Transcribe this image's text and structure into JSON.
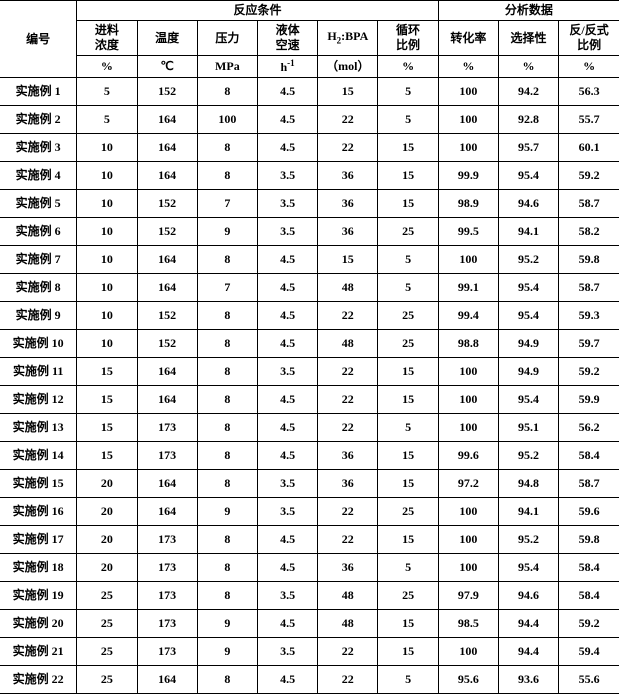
{
  "header": {
    "row_label": "编号",
    "group1": "反应条件",
    "group2": "分析数据",
    "c1": "进料<br>浓度",
    "c2": "温度",
    "c3": "压力",
    "c4": "液体<br>空速",
    "c5": "H<sub>2</sub>:BPA",
    "c6": "循环<br>比例",
    "c7": "转化率",
    "c8": "选择性",
    "c9": "反/反式<br>比例",
    "u1": "%",
    "u2": "℃",
    "u3": "MPa",
    "u4": "h<sup>-1</sup>",
    "u5": "（mol）",
    "u6": "%",
    "u7": "%",
    "u8": "%",
    "u9": "%"
  },
  "rows": [
    {
      "label": "实施例 1",
      "v": [
        "5",
        "152",
        "8",
        "4.5",
        "15",
        "5",
        "100",
        "94.2",
        "56.3"
      ]
    },
    {
      "label": "实施例 2",
      "v": [
        "5",
        "164",
        "100",
        "4.5",
        "22",
        "5",
        "100",
        "92.8",
        "55.7"
      ]
    },
    {
      "label": "实施例 3",
      "v": [
        "10",
        "164",
        "8",
        "4.5",
        "22",
        "15",
        "100",
        "95.7",
        "60.1"
      ]
    },
    {
      "label": "实施例 4",
      "v": [
        "10",
        "164",
        "8",
        "3.5",
        "36",
        "15",
        "99.9",
        "95.4",
        "59.2"
      ]
    },
    {
      "label": "实施例 5",
      "v": [
        "10",
        "152",
        "7",
        "3.5",
        "36",
        "15",
        "98.9",
        "94.6",
        "58.7"
      ]
    },
    {
      "label": "实施例 6",
      "v": [
        "10",
        "152",
        "9",
        "3.5",
        "36",
        "25",
        "99.5",
        "94.1",
        "58.2"
      ]
    },
    {
      "label": "实施例 7",
      "v": [
        "10",
        "164",
        "8",
        "4.5",
        "15",
        "5",
        "100",
        "95.2",
        "59.8"
      ]
    },
    {
      "label": "实施例 8",
      "v": [
        "10",
        "164",
        "7",
        "4.5",
        "48",
        "5",
        "99.1",
        "95.4",
        "58.7"
      ]
    },
    {
      "label": "实施例 9",
      "v": [
        "10",
        "152",
        "8",
        "4.5",
        "22",
        "25",
        "99.4",
        "95.4",
        "59.3"
      ]
    },
    {
      "label": "实施例 10",
      "v": [
        "10",
        "152",
        "8",
        "4.5",
        "48",
        "25",
        "98.8",
        "94.9",
        "59.7"
      ]
    },
    {
      "label": "实施例 11",
      "v": [
        "15",
        "164",
        "8",
        "3.5",
        "22",
        "15",
        "100",
        "94.9",
        "59.2"
      ]
    },
    {
      "label": "实施例 12",
      "v": [
        "15",
        "164",
        "8",
        "4.5",
        "22",
        "15",
        "100",
        "95.4",
        "59.9"
      ]
    },
    {
      "label": "实施例 13",
      "v": [
        "15",
        "173",
        "8",
        "4.5",
        "22",
        "5",
        "100",
        "95.1",
        "56.2"
      ]
    },
    {
      "label": "实施例 14",
      "v": [
        "15",
        "173",
        "8",
        "4.5",
        "36",
        "15",
        "99.6",
        "95.2",
        "58.4"
      ]
    },
    {
      "label": "实施例 15",
      "v": [
        "20",
        "164",
        "8",
        "3.5",
        "36",
        "15",
        "97.2",
        "94.8",
        "58.7"
      ]
    },
    {
      "label": "实施例 16",
      "v": [
        "20",
        "164",
        "9",
        "3.5",
        "22",
        "25",
        "100",
        "94.1",
        "59.6"
      ]
    },
    {
      "label": "实施例 17",
      "v": [
        "20",
        "173",
        "8",
        "4.5",
        "22",
        "15",
        "100",
        "95.2",
        "59.8"
      ]
    },
    {
      "label": "实施例 18",
      "v": [
        "20",
        "173",
        "8",
        "4.5",
        "36",
        "5",
        "100",
        "95.4",
        "58.4"
      ]
    },
    {
      "label": "实施例 19",
      "v": [
        "25",
        "173",
        "8",
        "3.5",
        "48",
        "25",
        "97.9",
        "94.6",
        "58.4"
      ]
    },
    {
      "label": "实施例 20",
      "v": [
        "25",
        "173",
        "9",
        "4.5",
        "48",
        "15",
        "98.5",
        "94.4",
        "59.2"
      ]
    },
    {
      "label": "实施例 21",
      "v": [
        "25",
        "173",
        "9",
        "3.5",
        "22",
        "15",
        "100",
        "94.4",
        "59.4"
      ]
    },
    {
      "label": "实施例 22",
      "v": [
        "25",
        "164",
        "8",
        "4.5",
        "22",
        "5",
        "95.6",
        "93.6",
        "55.6"
      ]
    }
  ],
  "style": {
    "border_color": "#000000",
    "background": "#ffffff",
    "text_color": "#000000",
    "font_size_header": 12,
    "font_size_body": 12,
    "font_weight": "bold",
    "row_height_body": 23
  }
}
